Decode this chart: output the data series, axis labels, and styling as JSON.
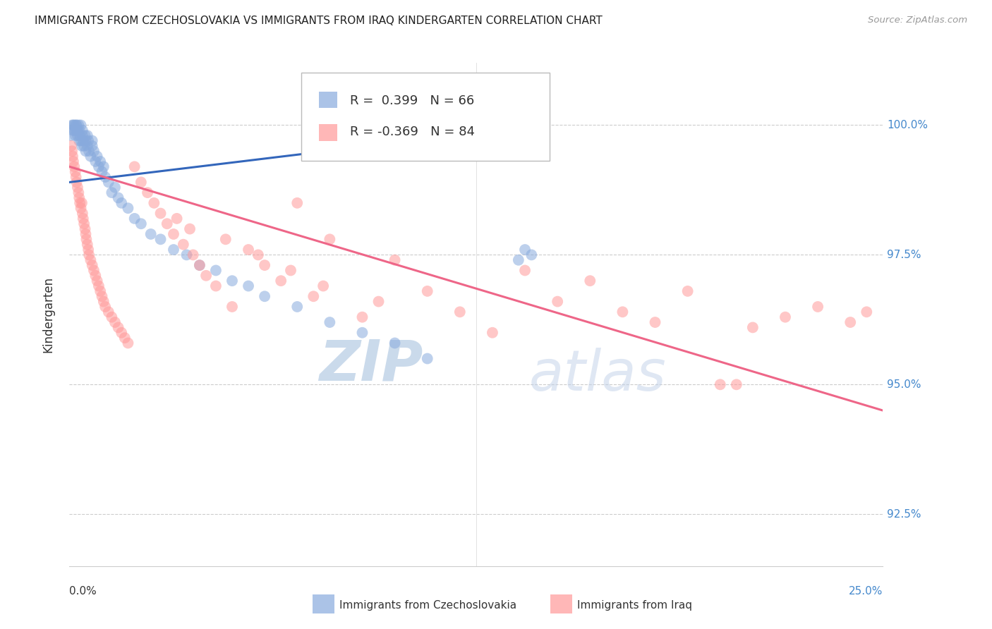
{
  "title": "IMMIGRANTS FROM CZECHOSLOVAKIA VS IMMIGRANTS FROM IRAQ KINDERGARTEN CORRELATION CHART",
  "source": "Source: ZipAtlas.com",
  "ylabel": "Kindergarten",
  "yticks": [
    92.5,
    95.0,
    97.5,
    100.0
  ],
  "ytick_labels": [
    "92.5%",
    "95.0%",
    "97.5%",
    "100.0%"
  ],
  "xlim": [
    0.0,
    25.0
  ],
  "ylim": [
    91.5,
    101.2
  ],
  "blue_R": 0.399,
  "blue_N": 66,
  "pink_R": -0.369,
  "pink_N": 84,
  "blue_color": "#88AADD",
  "pink_color": "#FF9999",
  "blue_line_color": "#3366BB",
  "pink_line_color": "#EE6688",
  "legend_label_blue": "Immigrants from Czechoslovakia",
  "legend_label_pink": "Immigrants from Iraq",
  "watermark_zip": "ZIP",
  "watermark_atlas": "atlas",
  "watermark_color": "#C8D8EE",
  "background_color": "#FFFFFF",
  "blue_scatter_x": [
    0.05,
    0.08,
    0.1,
    0.12,
    0.15,
    0.15,
    0.18,
    0.2,
    0.2,
    0.22,
    0.25,
    0.25,
    0.28,
    0.3,
    0.3,
    0.32,
    0.35,
    0.35,
    0.38,
    0.4,
    0.4,
    0.42,
    0.45,
    0.48,
    0.5,
    0.5,
    0.55,
    0.55,
    0.58,
    0.6,
    0.65,
    0.7,
    0.7,
    0.75,
    0.8,
    0.85,
    0.9,
    0.95,
    1.0,
    1.05,
    1.1,
    1.2,
    1.3,
    1.4,
    1.5,
    1.6,
    1.8,
    2.0,
    2.2,
    2.5,
    2.8,
    3.2,
    3.6,
    4.0,
    4.5,
    5.0,
    5.5,
    6.0,
    7.0,
    8.0,
    9.0,
    10.0,
    11.0,
    13.8,
    14.0,
    14.2
  ],
  "blue_scatter_y": [
    99.8,
    100.0,
    99.9,
    100.0,
    99.9,
    100.0,
    99.8,
    99.9,
    100.0,
    100.0,
    99.8,
    99.9,
    100.0,
    99.7,
    99.9,
    99.8,
    99.7,
    100.0,
    99.6,
    99.8,
    99.9,
    99.7,
    99.6,
    99.8,
    99.5,
    99.7,
    99.6,
    99.8,
    99.7,
    99.5,
    99.4,
    99.6,
    99.7,
    99.5,
    99.3,
    99.4,
    99.2,
    99.3,
    99.1,
    99.2,
    99.0,
    98.9,
    98.7,
    98.8,
    98.6,
    98.5,
    98.4,
    98.2,
    98.1,
    97.9,
    97.8,
    97.6,
    97.5,
    97.3,
    97.2,
    97.0,
    96.9,
    96.7,
    96.5,
    96.2,
    96.0,
    95.8,
    95.5,
    97.4,
    97.6,
    97.5
  ],
  "pink_scatter_x": [
    0.05,
    0.08,
    0.1,
    0.12,
    0.15,
    0.18,
    0.2,
    0.22,
    0.25,
    0.28,
    0.3,
    0.32,
    0.35,
    0.38,
    0.4,
    0.42,
    0.45,
    0.48,
    0.5,
    0.52,
    0.55,
    0.58,
    0.6,
    0.65,
    0.7,
    0.75,
    0.8,
    0.85,
    0.9,
    0.95,
    1.0,
    1.05,
    1.1,
    1.2,
    1.3,
    1.4,
    1.5,
    1.6,
    1.7,
    1.8,
    2.0,
    2.2,
    2.4,
    2.6,
    2.8,
    3.0,
    3.2,
    3.5,
    3.8,
    4.0,
    4.2,
    4.5,
    5.0,
    5.5,
    6.0,
    6.5,
    7.0,
    7.5,
    8.0,
    9.0,
    10.0,
    11.0,
    12.0,
    13.0,
    14.0,
    15.0,
    16.0,
    17.0,
    18.0,
    19.0,
    20.0,
    21.0,
    22.0,
    23.0,
    24.0,
    24.5,
    3.3,
    3.7,
    4.8,
    5.8,
    6.8,
    7.8,
    9.5,
    20.5
  ],
  "pink_scatter_y": [
    99.6,
    99.5,
    99.4,
    99.3,
    99.2,
    99.1,
    99.0,
    98.9,
    98.8,
    98.7,
    98.6,
    98.5,
    98.4,
    98.5,
    98.3,
    98.2,
    98.1,
    98.0,
    97.9,
    97.8,
    97.7,
    97.6,
    97.5,
    97.4,
    97.3,
    97.2,
    97.1,
    97.0,
    96.9,
    96.8,
    96.7,
    96.6,
    96.5,
    96.4,
    96.3,
    96.2,
    96.1,
    96.0,
    95.9,
    95.8,
    99.2,
    98.9,
    98.7,
    98.5,
    98.3,
    98.1,
    97.9,
    97.7,
    97.5,
    97.3,
    97.1,
    96.9,
    96.5,
    97.6,
    97.3,
    97.0,
    98.5,
    96.7,
    97.8,
    96.3,
    97.4,
    96.8,
    96.4,
    96.0,
    97.2,
    96.6,
    97.0,
    96.4,
    96.2,
    96.8,
    95.0,
    96.1,
    96.3,
    96.5,
    96.2,
    96.4,
    98.2,
    98.0,
    97.8,
    97.5,
    97.2,
    96.9,
    96.6,
    95.0
  ],
  "blue_trendline_x": [
    0.0,
    14.5
  ],
  "blue_trendline_y": [
    98.9,
    100.0
  ],
  "pink_trendline_x": [
    0.0,
    25.0
  ],
  "pink_trendline_y": [
    99.2,
    94.5
  ]
}
